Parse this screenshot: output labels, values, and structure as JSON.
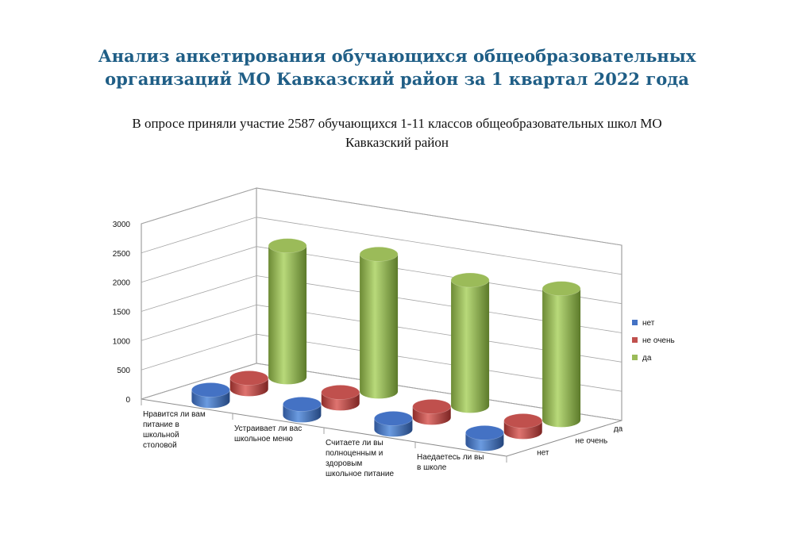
{
  "title_line1": "Анализ анкетирования обучающихся общеобразовательных",
  "title_line2": "организаций МО Кавказский район за 1 квартал 2022 года",
  "subtitle_line1": "В опросе приняли участие 2587 обучающихся 1-11 классов общеобразовательных школ МО",
  "subtitle_line2": "Кавказский район",
  "chart_data": {
    "type": "bar",
    "subtype": "3d-cylinder",
    "categories": [
      [
        "Нравится ли вам",
        "питание в",
        "школьной",
        "столовой"
      ],
      [
        "Устраивает ли вас",
        "школьное меню"
      ],
      [
        "Считаете ли вы",
        "полноценным и",
        "здоровым",
        "школьное питание"
      ],
      [
        "Наедаетесь ли вы",
        "в школе"
      ]
    ],
    "series": [
      {
        "name": "нет",
        "color": "#4472c4",
        "values": [
          150,
          20,
          180,
          30
        ]
      },
      {
        "name": "не очень",
        "color": "#c0504d",
        "values": [
          180,
          110,
          130,
          40
        ]
      },
      {
        "name": "да",
        "color": "#9bbb59",
        "values": [
          2250,
          2350,
          2150,
          2250
        ]
      }
    ],
    "depth_labels": [
      "да",
      "не очень",
      "нет"
    ],
    "yticks": [
      "0",
      "500",
      "1000",
      "1500",
      "2000",
      "2500",
      "3000"
    ],
    "ylim": [
      0,
      3000
    ],
    "grid": true,
    "legend": "right"
  }
}
